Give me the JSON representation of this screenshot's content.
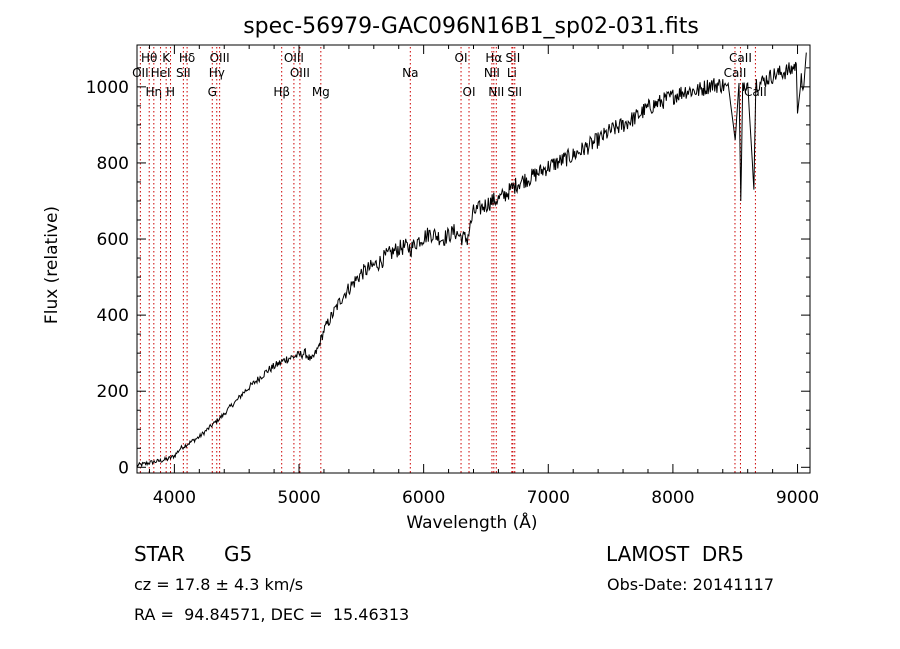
{
  "chart_data": {
    "type": "line",
    "title": "spec-56979-GAC096N16B1_sp02-031.fits",
    "xlabel": "Wavelength (Å)",
    "ylabel": "Flux (relative)",
    "xlim": [
      3700,
      9100
    ],
    "ylim": [
      -15,
      1110
    ],
    "xticks": [
      4000,
      5000,
      6000,
      7000,
      8000,
      9000
    ],
    "yticks": [
      0,
      200,
      400,
      600,
      800,
      1000
    ],
    "grid": false,
    "line_color": "#000000",
    "marker_color": "#cc0000",
    "series": [
      {
        "x": [
          3700,
          3750,
          3800,
          3850,
          3900,
          3950,
          4000,
          4050,
          4100,
          4150,
          4200,
          4250,
          4300,
          4350,
          4400,
          4450,
          4500,
          4550,
          4600,
          4650,
          4700,
          4750,
          4800,
          4850,
          4900,
          4950,
          5000,
          5050,
          5100,
          5150,
          5200,
          5250,
          5300,
          5350,
          5400,
          5450,
          5500,
          5550,
          5600,
          5650,
          5700,
          5750,
          5800,
          5850,
          5900,
          5950,
          6000,
          6050,
          6100,
          6150,
          6200,
          6250,
          6300,
          6350,
          6400,
          6450,
          6500,
          6550,
          6600,
          6650,
          6700,
          6750,
          6800,
          6850,
          6900,
          6950,
          7000,
          7100,
          7200,
          7300,
          7400,
          7500,
          7600,
          7700,
          7800,
          7900,
          8000,
          8100,
          8200,
          8300,
          8400,
          8450,
          8500,
          8530,
          8545,
          8560,
          8600,
          8650,
          8665,
          8680,
          8700,
          8750,
          8800,
          8850,
          8900,
          8950,
          8990,
          9000,
          9030,
          9050,
          9070
        ],
        "y": [
          5,
          8,
          12,
          15,
          18,
          22,
          30,
          50,
          60,
          70,
          80,
          95,
          110,
          125,
          140,
          160,
          175,
          195,
          210,
          225,
          240,
          255,
          265,
          275,
          285,
          290,
          295,
          300,
          280,
          310,
          360,
          390,
          420,
          450,
          470,
          490,
          510,
          520,
          530,
          540,
          555,
          565,
          575,
          580,
          575,
          595,
          605,
          615,
          610,
          600,
          610,
          620,
          605,
          600,
          670,
          680,
          690,
          700,
          705,
          715,
          730,
          745,
          755,
          760,
          770,
          780,
          790,
          805,
          820,
          840,
          860,
          885,
          900,
          920,
          945,
          960,
          975,
          990,
          990,
          1005,
          1005,
          990,
          860,
          1010,
          700,
          1010,
          1010,
          730,
          1010,
          1010,
          1010,
          1020,
          1030,
          1035,
          1040,
          1045,
          1060,
          930,
          1020,
          1000,
          1090
        ]
      }
    ],
    "lines": [
      {
        "name": "Hθ",
        "x": 3798,
        "row": 1
      },
      {
        "name": "OII",
        "x": 3727,
        "row": 2
      },
      {
        "name": "Hη",
        "x": 3835,
        "row": 3
      },
      {
        "name": "HeI",
        "x": 3889,
        "row": 2
      },
      {
        "name": "K",
        "x": 3934,
        "row": 1
      },
      {
        "name": "H",
        "x": 3969,
        "row": 3
      },
      {
        "name": "SII",
        "x": 4072,
        "row": 2
      },
      {
        "name": "Hδ",
        "x": 4102,
        "row": 1
      },
      {
        "name": "OIII",
        "x": 4363,
        "row": 1
      },
      {
        "name": "Hγ",
        "x": 4340,
        "row": 2
      },
      {
        "name": "G",
        "x": 4304,
        "row": 3
      },
      {
        "name": "Hβ",
        "x": 4861,
        "row": 3
      },
      {
        "name": "OIII",
        "x": 4959,
        "row": 1
      },
      {
        "name": "OIII",
        "x": 5007,
        "row": 2
      },
      {
        "name": "Mg",
        "x": 5175,
        "row": 3
      },
      {
        "name": "Na",
        "x": 5893,
        "row": 2
      },
      {
        "name": "OI",
        "x": 6300,
        "row": 1
      },
      {
        "name": "OI",
        "x": 6364,
        "row": 3
      },
      {
        "name": "Hα",
        "x": 6563,
        "row": 1
      },
      {
        "name": "NII",
        "x": 6548,
        "row": 2
      },
      {
        "name": "NII",
        "x": 6583,
        "row": 3
      },
      {
        "name": "SII",
        "x": 6716,
        "row": 1
      },
      {
        "name": "Li",
        "x": 6708,
        "row": 2
      },
      {
        "name": "SII",
        "x": 6731,
        "row": 3
      },
      {
        "name": "CaII",
        "x": 8542,
        "row": 1
      },
      {
        "name": "CaII",
        "x": 8498,
        "row": 2
      },
      {
        "name": "CaII",
        "x": 8662,
        "row": 3
      }
    ]
  },
  "info": {
    "class_label": "STAR",
    "subclass": "G5",
    "survey": "LAMOST  DR5",
    "redshift": "cz = 17.8 ± 4.3 km/s",
    "obs_date": "Obs-Date: 20141117",
    "coords": "RA =  94.84571, DEC =  15.46313"
  }
}
